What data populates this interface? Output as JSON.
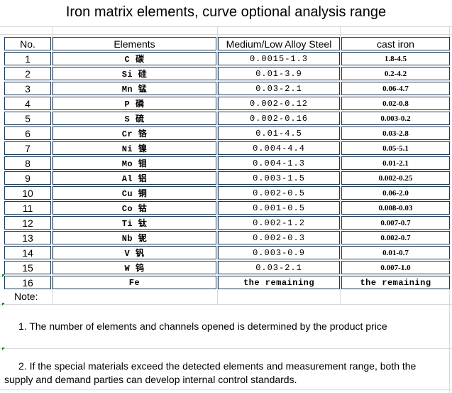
{
  "title": "Iron matrix elements, curve optional analysis range",
  "table": {
    "headers": [
      "No.",
      "Elements",
      "Medium/Low Alloy Steel",
      "cast iron"
    ],
    "rows": [
      {
        "no": "1",
        "element": "C  碳",
        "steel": "0.0015-1.3",
        "cast": "1.8-4.5"
      },
      {
        "no": "2",
        "element": "Si 硅",
        "steel": "0.01-3.9",
        "cast": "0.2-4.2"
      },
      {
        "no": "3",
        "element": "Mn 锰",
        "steel": "0.03-2.1",
        "cast": "0.06-4.7"
      },
      {
        "no": "4",
        "element": "P  磷",
        "steel": "0.002-0.12",
        "cast": "0.02-0.8"
      },
      {
        "no": "5",
        "element": "S  硫",
        "steel": "0.002-0.16",
        "cast": "0.003-0.2"
      },
      {
        "no": "6",
        "element": "Cr 铬",
        "steel": "0.01-4.5",
        "cast": "0.03-2.8"
      },
      {
        "no": "7",
        "element": "Ni 镍",
        "steel": "0.004-4.4",
        "cast": "0.05-5.1"
      },
      {
        "no": "8",
        "element": "Mo 钼",
        "steel": "0.004-1.3",
        "cast": "0.01-2.1"
      },
      {
        "no": "9",
        "element": "Al 铝",
        "steel": "0.003-1.5",
        "cast": "0.002-0.25"
      },
      {
        "no": "10",
        "element": "Cu 铜",
        "steel": "0.002-0.5",
        "cast": "0.06-2.0"
      },
      {
        "no": "11",
        "element": "Co 钴",
        "steel": "0.001-0.5",
        "cast": "0.008-0.03"
      },
      {
        "no": "12",
        "element": "Ti 钛",
        "steel": "0.002-1.2",
        "cast": "0.007-0.7"
      },
      {
        "no": "13",
        "element": "Nb 铌",
        "steel": "0.002-0.3",
        "cast": "0.002-0.7"
      },
      {
        "no": "14",
        "element": "V  钒",
        "steel": "0.003-0.9",
        "cast": "0.01-0.7"
      },
      {
        "no": "15",
        "element": "W  钨",
        "steel": "0.03-2.1",
        "cast": "0.007-1.0"
      },
      {
        "no": "16",
        "element": "Fe",
        "steel": "the remaining",
        "cast": "the remaining"
      }
    ]
  },
  "notes": {
    "label": "Note:",
    "items": [
      "1. The number of elements and channels opened is determined by the product price",
      "2. If the special materials exceed the detected elements and measurement range, both the supply and demand parties can develop internal control standards."
    ]
  }
}
